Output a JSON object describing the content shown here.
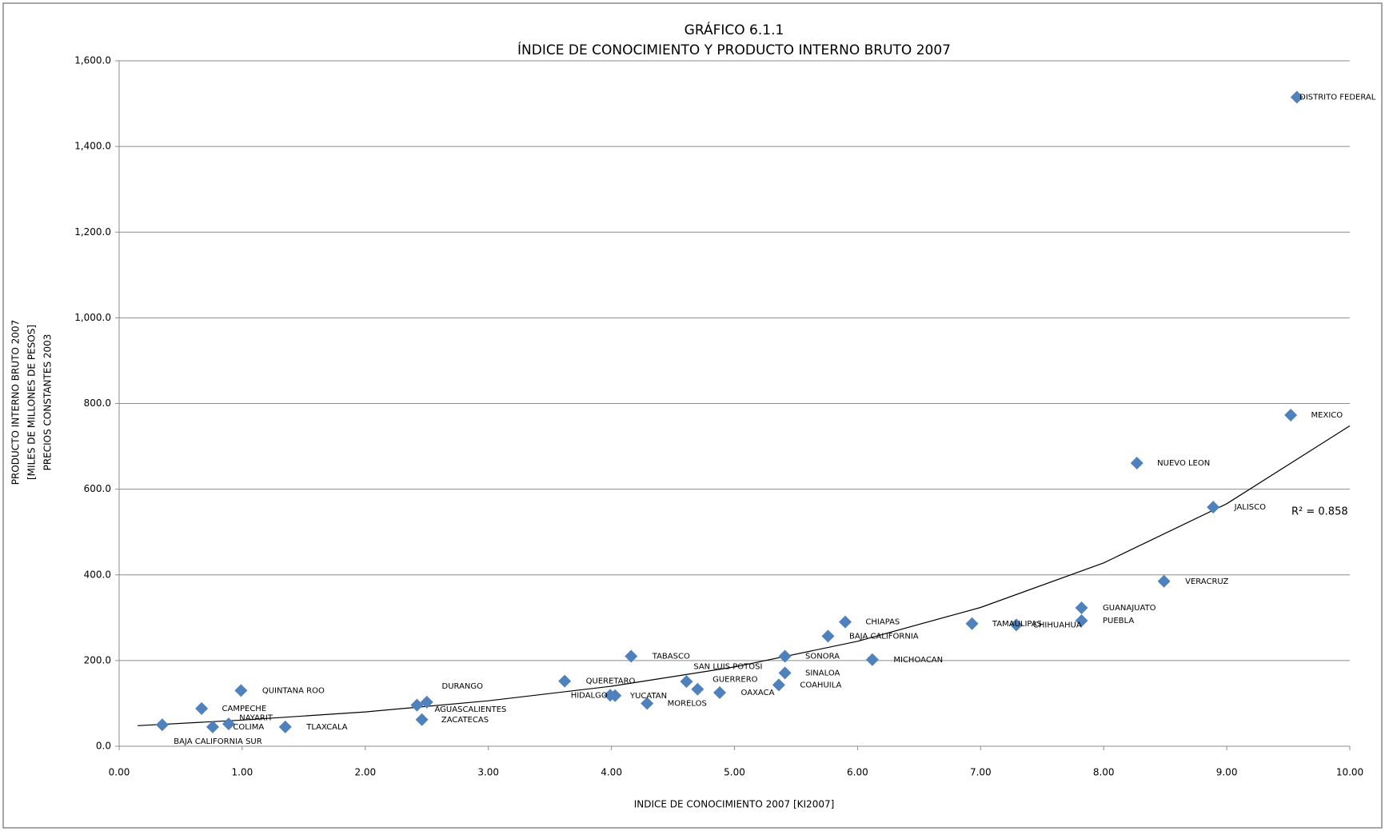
{
  "chart_data": {
    "type": "scatter",
    "title": "GRÁFICO 6.1.1",
    "subtitle": "ÍNDICE DE CONOCIMIENTO Y PRODUCTO INTERNO BRUTO 2007",
    "x_label": "INDICE DE CONOCIMIENTO 2007 [KI2007]",
    "y_label": [
      "PRODUCTO INTERNO BRUTO 2007",
      "[MILES DE MILLONES DE PESOS]",
      "PRECIOS CONSTANTES 2003"
    ],
    "xlim": [
      0,
      10
    ],
    "ylim": [
      0,
      1600
    ],
    "xticks": [
      {
        "value": 0,
        "label": "0.00"
      },
      {
        "value": 1,
        "label": "1.00"
      },
      {
        "value": 2,
        "label": "2.00"
      },
      {
        "value": 3,
        "label": "3.00"
      },
      {
        "value": 4,
        "label": "4.00"
      },
      {
        "value": 5,
        "label": "5.00"
      },
      {
        "value": 6,
        "label": "6.00"
      },
      {
        "value": 7,
        "label": "7.00"
      },
      {
        "value": 8,
        "label": "8.00"
      },
      {
        "value": 9,
        "label": "9.00"
      },
      {
        "value": 10,
        "label": "10.00"
      }
    ],
    "yticks": [
      {
        "value": 0,
        "label": "0.0"
      },
      {
        "value": 200,
        "label": "200.0"
      },
      {
        "value": 400,
        "label": "400.0"
      },
      {
        "value": 600,
        "label": "600.0"
      },
      {
        "value": 800,
        "label": "800.0"
      },
      {
        "value": 1000,
        "label": "1,000.0"
      },
      {
        "value": 1200,
        "label": "1,200.0"
      },
      {
        "value": 1400,
        "label": "1,400.0"
      },
      {
        "value": 1600,
        "label": "1,600.0"
      }
    ],
    "grid": true,
    "series": [
      {
        "color": "#4f81bd",
        "x": [
          9.57,
          9.52,
          8.27,
          8.89,
          8.49,
          7.82,
          7.82,
          7.29,
          6.93,
          5.9,
          5.76,
          6.12,
          5.41,
          5.41,
          5.36,
          4.88,
          4.7,
          4.61,
          4.29,
          4.03,
          3.99,
          3.62,
          4.16,
          2.5,
          2.42,
          2.46,
          0.99,
          0.67,
          0.89,
          0.76,
          1.35,
          0.35
        ],
        "values": [
          1515,
          773,
          661,
          558,
          385,
          323,
          293,
          283,
          286,
          290,
          257,
          202,
          210,
          171,
          143,
          125,
          133,
          151,
          100,
          118,
          119,
          152,
          210,
          103,
          96,
          62,
          130,
          88,
          52,
          45,
          45,
          50
        ],
        "point_labels": [
          "DISTRITO FEDERAL",
          "MEXICO",
          "NUEVO  LEON",
          "JALISCO",
          "VERACRUZ",
          "GUANAJUATO",
          "PUEBLA",
          "CHIHUAHUA",
          "TAMAULIPAS",
          "CHIAPAS",
          "BAJA CALIFORNIA",
          "MICHOACAN",
          "SONORA",
          "SINALOA",
          "COAHUILA",
          "OAXACA",
          "GUERRERO",
          "SAN LUIS POTOSI",
          "MORELOS",
          "YUCATAN",
          "HIDALGO",
          "QUERETARO",
          "TABASCO",
          "DURANGO",
          "AGUASCALIENTES",
          "ZACATECAS",
          "QUINTANA ROO",
          "CAMPECHE",
          "NAYARIT",
          "COLIMA",
          "TLAXCALA",
          "BAJA CALIFORNIA SUR"
        ]
      }
    ],
    "trendline": {
      "type": "exponential",
      "color": "#000000",
      "x": [
        0.15,
        1,
        2,
        3,
        4,
        5,
        6,
        7,
        8,
        9,
        10
      ],
      "values": [
        48,
        61,
        80,
        106,
        140,
        185,
        245,
        324,
        428,
        566,
        748
      ],
      "annotation": "R² = 0.858"
    }
  }
}
